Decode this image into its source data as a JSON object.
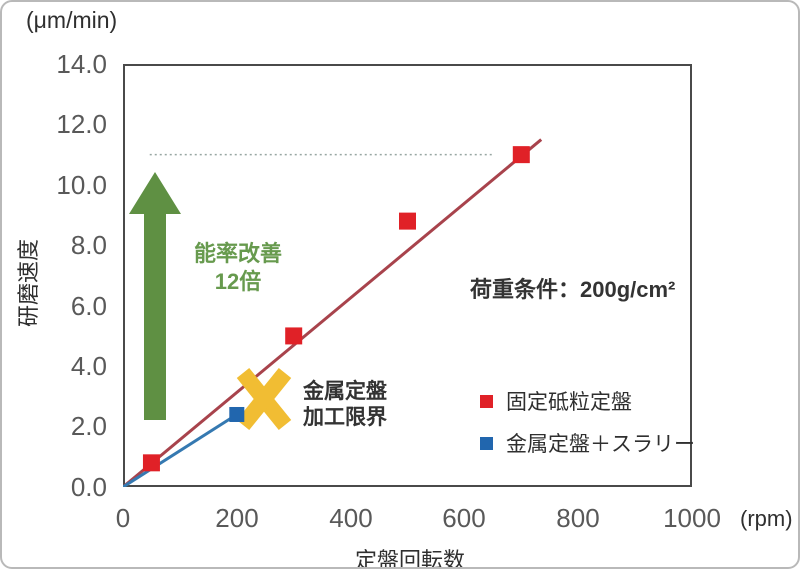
{
  "chart_data": {
    "type": "scatter",
    "title": "",
    "y_axis_unit": "(μm/min)",
    "x_axis_unit": "(rpm)",
    "xlabel": "定盤回転数",
    "ylabel": "研磨速度",
    "xlim": [
      0,
      1000
    ],
    "ylim": [
      0,
      14.0
    ],
    "grid": false,
    "x_tick_labels": [
      "0",
      "200",
      "400",
      "600",
      "800",
      "1000"
    ],
    "y_tick_labels": [
      "14.0",
      "12.0",
      "10.0",
      "8.0",
      "6.0",
      "4.0",
      "2.0",
      "0.0"
    ],
    "series": [
      {
        "name": "固定砥粒定盤",
        "marker": "square",
        "color": "#e02127",
        "marker_size": 17,
        "points": [
          [
            50,
            0.8
          ],
          [
            300,
            5.0
          ],
          [
            500,
            8.8
          ],
          [
            700,
            11.0
          ]
        ],
        "trend_line": {
          "x1": 0,
          "y1": 0,
          "x2": 735,
          "y2": 11.5,
          "color": "#a8434c",
          "width": 3
        }
      },
      {
        "name": "金属定盤＋スラリー",
        "marker": "square",
        "color": "#2166ae",
        "marker_size": 15,
        "points": [
          [
            200,
            2.4
          ]
        ],
        "trend_line": {
          "x1": 0,
          "y1": 0,
          "x2": 200,
          "y2": 2.4,
          "color": "#3579b1",
          "width": 3
        }
      }
    ],
    "reference_line": {
      "y": 11.0,
      "x1": 47,
      "x2": 650,
      "color": "#98a6a2",
      "dash": "2 3",
      "width": 1.5
    },
    "legend_position": "inside-right",
    "annotations": {
      "improvement": {
        "line1": "能率改善",
        "line2": "12倍",
        "color": "#679a4e",
        "arrow_color": "#5f9043"
      },
      "limit": {
        "line1": "金属定盤",
        "line2": "加工限界",
        "color": "#333333",
        "x_mark_color": "#f1bd33"
      },
      "load_condition": {
        "text": "荷重条件：200g/cm²",
        "color": "#333333"
      }
    }
  }
}
